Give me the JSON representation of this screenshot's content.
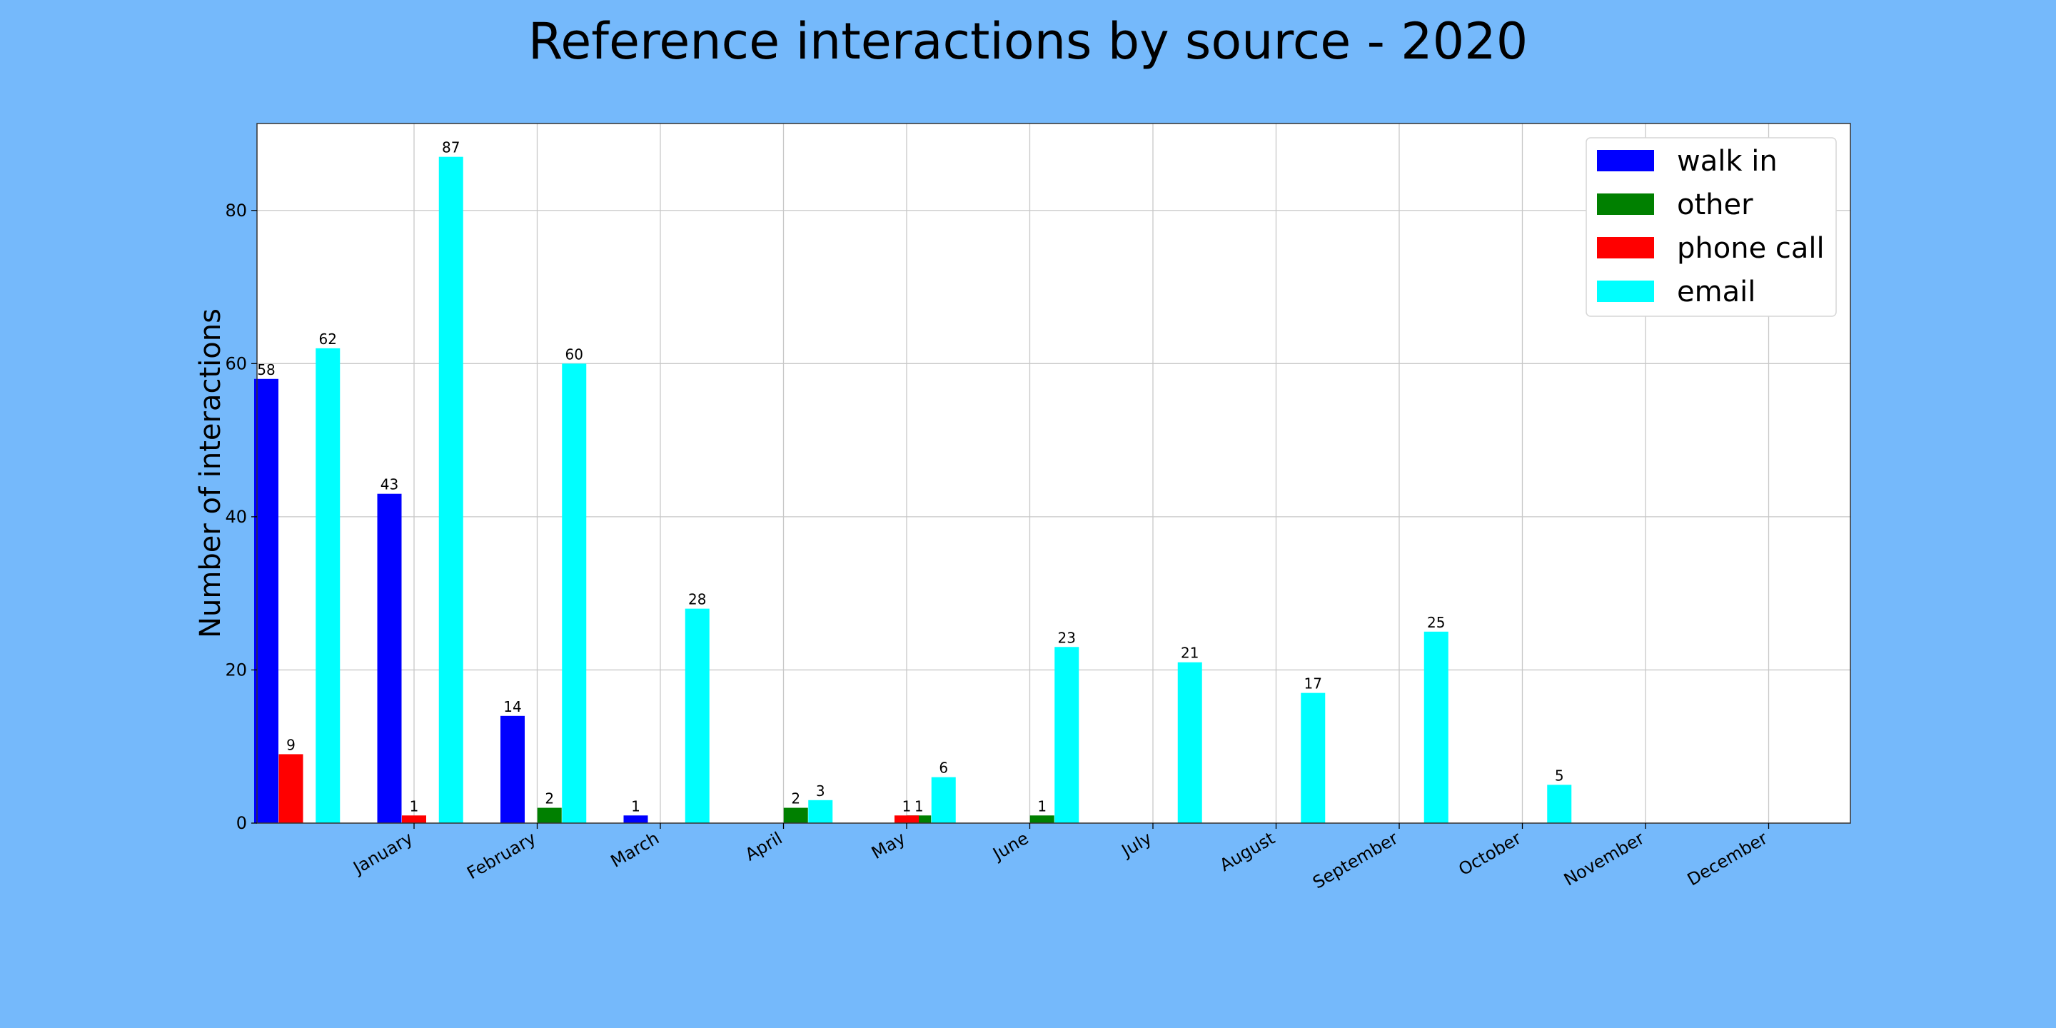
{
  "chart_data": {
    "type": "bar",
    "title": "Reference interactions by source - 2020",
    "ylabel": "Number of interactions",
    "xlabel": "",
    "ylim": [
      0,
      91.35
    ],
    "yticks": [
      0,
      20,
      40,
      60,
      80
    ],
    "grid": true,
    "legend_position": "top-right",
    "background_color": "#75b9fb",
    "plot_background_color": "#ffffff",
    "categories": [
      "January",
      "February",
      "March",
      "April",
      "May",
      "June",
      "July",
      "August",
      "September",
      "October",
      "November",
      "December"
    ],
    "series": [
      {
        "name": "walk in",
        "color": "#0000ff",
        "values": [
          58,
          43,
          14,
          1,
          0,
          0,
          0,
          0,
          0,
          0,
          0,
          0
        ]
      },
      {
        "name": "other",
        "color": "#008000",
        "values": [
          0,
          0,
          2,
          0,
          2,
          1,
          1,
          0,
          0,
          0,
          0,
          0
        ]
      },
      {
        "name": "phone call",
        "color": "#ff0000",
        "values": [
          9,
          1,
          0,
          0,
          0,
          1,
          0,
          0,
          0,
          0,
          0,
          0
        ]
      },
      {
        "name": "email",
        "color": "#00ffff",
        "values": [
          62,
          87,
          60,
          28,
          3,
          6,
          23,
          21,
          17,
          25,
          5,
          0
        ]
      }
    ]
  }
}
